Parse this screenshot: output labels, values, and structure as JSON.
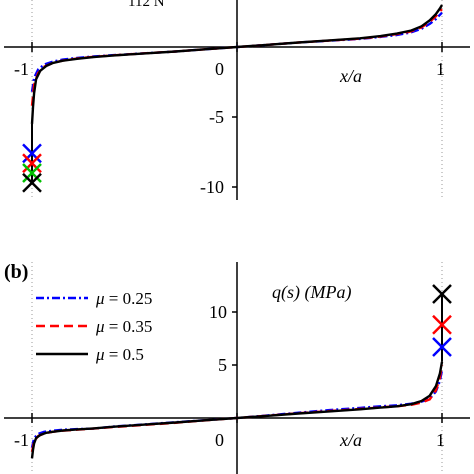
{
  "chart_data": [
    {
      "type": "line",
      "panel": "a",
      "top_label": "112 N",
      "xlabel": "x/a",
      "ylabel": "",
      "xlim": [
        -1.2,
        1.2
      ],
      "ylim": [
        -10,
        3
      ],
      "x_ticks": [
        -1,
        0,
        1
      ],
      "x_tick_labels": [
        "-1",
        "0",
        "1"
      ],
      "y_ticks": [
        -5,
        -10
      ],
      "y_tick_labels": [
        "-5",
        "-10"
      ],
      "series": [
        {
          "color": "#0000ff",
          "dash": "dashdot",
          "x": [
            -1.0,
            -0.99,
            -0.97,
            -0.94,
            -0.9,
            -0.85,
            -0.78,
            -0.7,
            -0.6,
            -0.45,
            -0.3,
            -0.15,
            0.0,
            0.15,
            0.3,
            0.45,
            0.6,
            0.7,
            0.78,
            0.85,
            0.9,
            0.94,
            0.97,
            0.99,
            1.0
          ],
          "y": [
            -3.2,
            -2.2,
            -1.6,
            -1.25,
            -1.05,
            -0.9,
            -0.78,
            -0.68,
            -0.58,
            -0.45,
            -0.32,
            -0.16,
            0.0,
            0.16,
            0.32,
            0.45,
            0.58,
            0.72,
            0.86,
            1.05,
            1.3,
            1.65,
            2.0,
            2.3,
            2.45
          ]
        },
        {
          "color": "#ff0000",
          "dash": "dashed",
          "x": [
            -1.0,
            -0.99,
            -0.97,
            -0.94,
            -0.9,
            -0.85,
            -0.78,
            -0.7,
            -0.6,
            -0.45,
            -0.3,
            -0.15,
            0.0,
            0.15,
            0.3,
            0.45,
            0.6,
            0.7,
            0.78,
            0.85,
            0.9,
            0.94,
            0.97,
            0.99,
            1.0
          ],
          "y": [
            -4.2,
            -2.7,
            -1.85,
            -1.4,
            -1.15,
            -0.97,
            -0.82,
            -0.7,
            -0.59,
            -0.45,
            -0.32,
            -0.16,
            0.0,
            0.16,
            0.32,
            0.46,
            0.6,
            0.75,
            0.92,
            1.12,
            1.4,
            1.8,
            2.2,
            2.55,
            2.7
          ]
        },
        {
          "color": "#000000",
          "dash": "solid",
          "x": [
            -1.0,
            -0.995,
            -0.99,
            -0.98,
            -0.96,
            -0.93,
            -0.9,
            -0.85,
            -0.78,
            -0.7,
            -0.6,
            -0.45,
            -0.3,
            -0.15,
            0.0,
            0.15,
            0.3,
            0.45,
            0.6,
            0.7,
            0.78,
            0.85,
            0.9,
            0.94,
            0.97,
            0.99,
            1.0
          ],
          "y": [
            -5.5,
            -4.3,
            -3.3,
            -2.3,
            -1.7,
            -1.35,
            -1.15,
            -0.98,
            -0.84,
            -0.72,
            -0.6,
            -0.46,
            -0.32,
            -0.16,
            0.0,
            0.16,
            0.32,
            0.47,
            0.62,
            0.78,
            0.96,
            1.18,
            1.48,
            1.9,
            2.35,
            2.75,
            3.0
          ]
        }
      ],
      "markers": [
        {
          "x": -1.0,
          "y": -7.6,
          "color": "#0000ff"
        },
        {
          "x": -1.0,
          "y": -8.3,
          "color": "#ff0000"
        },
        {
          "x": -1.0,
          "y": -9.0,
          "color": "#00c000"
        },
        {
          "x": -1.0,
          "y": -9.7,
          "color": "#000000"
        }
      ]
    },
    {
      "type": "line",
      "panel": "b",
      "panel_label": "(b)",
      "xlabel": "x/a",
      "ylabel": "q(s) (MPa)",
      "xlim": [
        -1.2,
        1.2
      ],
      "ylim": [
        -4,
        13
      ],
      "x_ticks": [
        -1,
        0,
        1
      ],
      "x_tick_labels": [
        "-1",
        "0",
        "1"
      ],
      "y_ticks": [
        10,
        5
      ],
      "y_tick_labels": [
        "10",
        "5"
      ],
      "legend": {
        "position": "top-left",
        "entries": [
          {
            "symbol": "μ",
            "text": " = 0.25",
            "color": "#0000ff",
            "dash": "dashdot"
          },
          {
            "symbol": "μ",
            "text": " = 0.35",
            "color": "#ff0000",
            "dash": "dashed"
          },
          {
            "symbol": "μ",
            "text": " = 0.5",
            "color": "#000000",
            "dash": "solid"
          }
        ]
      },
      "series": [
        {
          "color": "#0000ff",
          "dash": "dashdot",
          "x": [
            -1.0,
            -0.99,
            -0.97,
            -0.94,
            -0.9,
            -0.85,
            -0.78,
            -0.7,
            -0.6,
            -0.45,
            -0.3,
            -0.15,
            0.0,
            0.15,
            0.3,
            0.45,
            0.6,
            0.7,
            0.78,
            0.85,
            0.9,
            0.94,
            0.97,
            0.99,
            1.0
          ],
          "y": [
            -2.8,
            -1.9,
            -1.5,
            -1.3,
            -1.2,
            -1.1,
            -1.05,
            -1.0,
            -0.8,
            -0.6,
            -0.4,
            -0.2,
            0.0,
            0.25,
            0.5,
            0.75,
            0.95,
            1.1,
            1.2,
            1.35,
            1.55,
            1.8,
            2.5,
            3.5,
            4.5
          ]
        },
        {
          "color": "#ff0000",
          "dash": "dashed",
          "x": [
            -1.0,
            -0.99,
            -0.97,
            -0.94,
            -0.9,
            -0.85,
            -0.78,
            -0.7,
            -0.6,
            -0.45,
            -0.3,
            -0.15,
            0.0,
            0.15,
            0.3,
            0.45,
            0.6,
            0.7,
            0.78,
            0.85,
            0.9,
            0.94,
            0.97,
            0.99,
            1.0
          ],
          "y": [
            -3.2,
            -2.2,
            -1.7,
            -1.45,
            -1.3,
            -1.2,
            -1.1,
            -1.0,
            -0.85,
            -0.65,
            -0.45,
            -0.22,
            0.0,
            0.22,
            0.45,
            0.65,
            0.85,
            1.0,
            1.1,
            1.25,
            1.45,
            1.75,
            2.6,
            3.8,
            5.0
          ]
        },
        {
          "color": "#000000",
          "dash": "solid",
          "x": [
            -1.0,
            -0.995,
            -0.99,
            -0.98,
            -0.96,
            -0.93,
            -0.9,
            -0.85,
            -0.78,
            -0.7,
            -0.6,
            -0.45,
            -0.3,
            -0.15,
            0.0,
            0.15,
            0.3,
            0.45,
            0.6,
            0.7,
            0.78,
            0.85,
            0.9,
            0.94,
            0.97,
            0.99,
            1.0
          ],
          "y": [
            -3.8,
            -3.0,
            -2.4,
            -1.9,
            -1.6,
            -1.4,
            -1.3,
            -1.18,
            -1.08,
            -0.98,
            -0.82,
            -0.62,
            -0.42,
            -0.21,
            0.0,
            0.21,
            0.42,
            0.62,
            0.82,
            0.98,
            1.1,
            1.3,
            1.6,
            2.1,
            3.0,
            4.2,
            5.3
          ]
        }
      ],
      "markers": [
        {
          "x": 1.0,
          "y": 11.7,
          "color": "#000000"
        },
        {
          "x": 1.0,
          "y": 8.8,
          "color": "#ff0000"
        },
        {
          "x": 1.0,
          "y": 6.7,
          "color": "#0000ff"
        }
      ]
    }
  ]
}
